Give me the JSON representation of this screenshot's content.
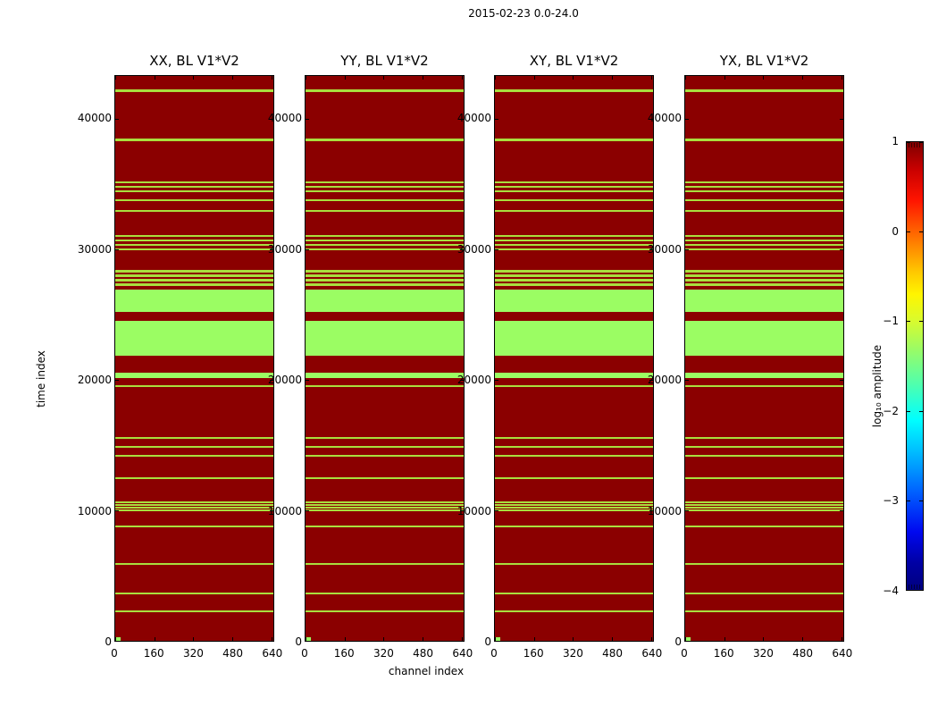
{
  "chart_data": {
    "type": "heatmap",
    "suptitle": "2015-02-23 0.0-24.0",
    "panels": [
      {
        "title": "XX, BL V1*V2"
      },
      {
        "title": "YY, BL V1*V2"
      },
      {
        "title": "XY, BL V1*V2"
      },
      {
        "title": "YX, BL V1*V2"
      }
    ],
    "xlabel": "channel index",
    "ylabel": "time index",
    "xlim": [
      0,
      648
    ],
    "ylim": [
      0,
      43300
    ],
    "xticks": [
      0,
      160,
      320,
      480,
      640
    ],
    "yticks": [
      0,
      10000,
      20000,
      30000,
      40000
    ],
    "grid": false,
    "colors": {
      "background": "#8B0000",
      "thin_stripe": "#A9DF3E",
      "band": "#9BFD63"
    },
    "colorbar": {
      "label": "log₁₀ amplitude",
      "cmap": "jet",
      "vmin": -4,
      "vmax": 1,
      "ticks": [
        1,
        0,
        -1,
        -2,
        -3,
        -4
      ]
    },
    "stripes": [
      {
        "from": 42050,
        "to": 42250,
        "kind": "line"
      },
      {
        "from": 38330,
        "to": 38500,
        "kind": "line"
      },
      {
        "from": 35070,
        "to": 35230,
        "kind": "line"
      },
      {
        "from": 34730,
        "to": 34890,
        "kind": "line"
      },
      {
        "from": 34390,
        "to": 34550,
        "kind": "line"
      },
      {
        "from": 33710,
        "to": 33870,
        "kind": "line"
      },
      {
        "from": 32890,
        "to": 33050,
        "kind": "line"
      },
      {
        "from": 30950,
        "to": 31100,
        "kind": "line"
      },
      {
        "from": 30610,
        "to": 30760,
        "kind": "line"
      },
      {
        "from": 30270,
        "to": 30420,
        "kind": "line"
      },
      {
        "from": 29930,
        "to": 30080,
        "kind": "line"
      },
      {
        "from": 28240,
        "to": 28400,
        "kind": "line"
      },
      {
        "from": 27900,
        "to": 28060,
        "kind": "line"
      },
      {
        "from": 27560,
        "to": 27720,
        "kind": "line"
      },
      {
        "from": 27220,
        "to": 27380,
        "kind": "line"
      },
      {
        "from": 25250,
        "to": 26950,
        "kind": "band"
      },
      {
        "from": 21850,
        "to": 24550,
        "kind": "band"
      },
      {
        "from": 20150,
        "to": 20550,
        "kind": "band"
      },
      {
        "from": 19450,
        "to": 19600,
        "kind": "line"
      },
      {
        "from": 15490,
        "to": 15640,
        "kind": "line"
      },
      {
        "from": 14810,
        "to": 14960,
        "kind": "line"
      },
      {
        "from": 14130,
        "to": 14280,
        "kind": "line"
      },
      {
        "from": 12420,
        "to": 12570,
        "kind": "line"
      },
      {
        "from": 10570,
        "to": 10720,
        "kind": "line"
      },
      {
        "from": 10350,
        "to": 10490,
        "kind": "line"
      },
      {
        "from": 10130,
        "to": 10270,
        "kind": "line"
      },
      {
        "from": 9910,
        "to": 10050,
        "kind": "line"
      },
      {
        "from": 8670,
        "to": 8820,
        "kind": "line"
      },
      {
        "from": 5800,
        "to": 5950,
        "kind": "line"
      },
      {
        "from": 3550,
        "to": 3700,
        "kind": "line"
      },
      {
        "from": 2180,
        "to": 2330,
        "kind": "line"
      }
    ],
    "corner_dot": {
      "time_from": 0,
      "time_to": 260,
      "chan_from": 4,
      "chan_to": 22
    }
  }
}
